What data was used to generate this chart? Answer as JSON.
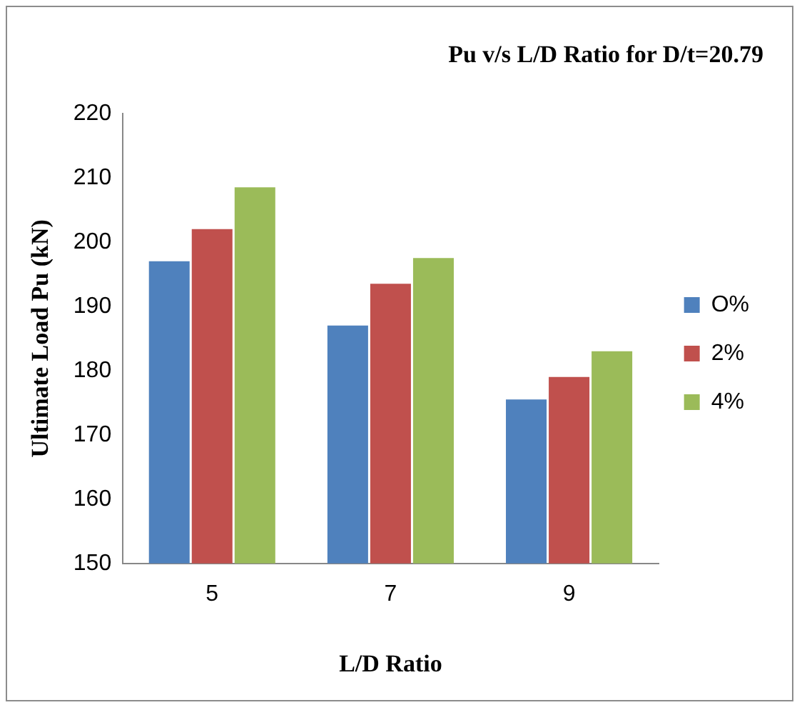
{
  "chart_data": {
    "type": "bar",
    "title": "Pu v/s L/D Ratio for D/t=20.79",
    "xlabel": "L/D Ratio",
    "ylabel": "Ultimate Load Pu (kN)",
    "categories": [
      "5",
      "7",
      "9"
    ],
    "series": [
      {
        "name": "O%",
        "color": "#4f81bd",
        "values": [
          197,
          187,
          175.5
        ]
      },
      {
        "name": "2%",
        "color": "#c0504d",
        "values": [
          202,
          193.5,
          179
        ]
      },
      {
        "name": "4%",
        "color": "#9bbb59",
        "values": [
          208.5,
          197.5,
          183
        ]
      }
    ],
    "ylim": [
      150,
      220
    ],
    "yticks": [
      150,
      160,
      170,
      180,
      190,
      200,
      210,
      220
    ],
    "grid": false,
    "legend": "right"
  }
}
